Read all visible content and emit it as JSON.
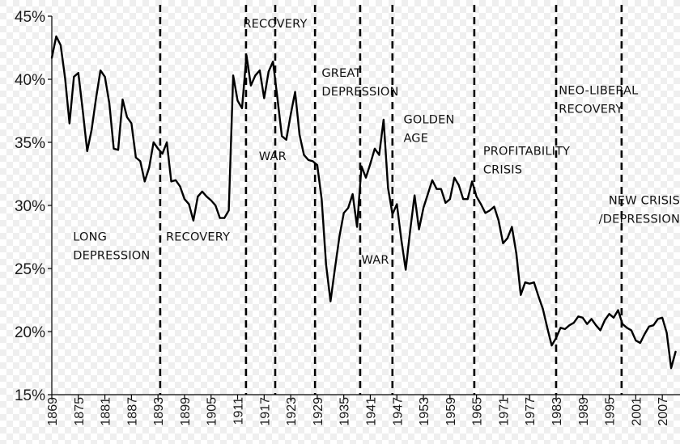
{
  "chart_data": {
    "type": "line",
    "title": "",
    "xlabel": "",
    "ylabel": "",
    "xlim": [
      1869,
      2011
    ],
    "ylim": [
      15,
      45
    ],
    "grid": false,
    "legend": "none",
    "line_color": "#000000",
    "y_ticks": [
      {
        "value": 15,
        "label": "15%"
      },
      {
        "value": 20,
        "label": "20%"
      },
      {
        "value": 25,
        "label": "25%"
      },
      {
        "value": 30,
        "label": "30%"
      },
      {
        "value": 35,
        "label": "35%"
      },
      {
        "value": 40,
        "label": "40%"
      },
      {
        "value": 45,
        "label": "45%"
      }
    ],
    "x_ticks": [
      {
        "value": 1869,
        "label": "1869"
      },
      {
        "value": 1875,
        "label": "1875"
      },
      {
        "value": 1881,
        "label": "1881"
      },
      {
        "value": 1887,
        "label": "1887"
      },
      {
        "value": 1893,
        "label": "1893"
      },
      {
        "value": 1899,
        "label": "1899"
      },
      {
        "value": 1905,
        "label": "1905"
      },
      {
        "value": 1911,
        "label": "1911"
      },
      {
        "value": 1917,
        "label": "1917"
      },
      {
        "value": 1923,
        "label": "1923"
      },
      {
        "value": 1929,
        "label": "1929"
      },
      {
        "value": 1935,
        "label": "1935"
      },
      {
        "value": 1941,
        "label": "1941"
      },
      {
        "value": 1947,
        "label": "1947"
      },
      {
        "value": 1953,
        "label": "1953"
      },
      {
        "value": 1959,
        "label": "1959"
      },
      {
        "value": 1965,
        "label": "1965"
      },
      {
        "value": 1971,
        "label": "1971"
      },
      {
        "value": 1977,
        "label": "1977"
      },
      {
        "value": 1983,
        "label": "1983"
      },
      {
        "value": 1989,
        "label": "1989"
      },
      {
        "value": 1995,
        "label": "1995"
      },
      {
        "value": 2001,
        "label": "2001"
      },
      {
        "value": 2007,
        "label": "2007"
      }
    ],
    "x": [
      1869,
      1870,
      1871,
      1872,
      1873,
      1874,
      1875,
      1876,
      1877,
      1878,
      1879,
      1880,
      1881,
      1882,
      1883,
      1884,
      1885,
      1886,
      1887,
      1888,
      1889,
      1890,
      1891,
      1892,
      1893,
      1894,
      1895,
      1896,
      1897,
      1898,
      1899,
      1900,
      1901,
      1902,
      1903,
      1904,
      1905,
      1906,
      1907,
      1908,
      1909,
      1910,
      1911,
      1912,
      1913,
      1914,
      1915,
      1916,
      1917,
      1918,
      1919,
      1920,
      1921,
      1922,
      1923,
      1924,
      1925,
      1926,
      1927,
      1928,
      1929,
      1930,
      1931,
      1932,
      1933,
      1934,
      1935,
      1936,
      1937,
      1938,
      1939,
      1940,
      1941,
      1942,
      1943,
      1944,
      1945,
      1946,
      1947,
      1948,
      1949,
      1950,
      1951,
      1952,
      1953,
      1954,
      1955,
      1956,
      1957,
      1958,
      1959,
      1960,
      1961,
      1962,
      1963,
      1964,
      1965,
      1966,
      1967,
      1968,
      1969,
      1970,
      1971,
      1972,
      1973,
      1974,
      1975,
      1976,
      1977,
      1978,
      1979,
      1980,
      1981,
      1982,
      1983,
      1984,
      1985,
      1986,
      1987,
      1988,
      1989,
      1990,
      1991,
      1992,
      1993,
      1994,
      1995,
      1996,
      1997,
      1998,
      1999,
      2000,
      2001,
      2002,
      2003,
      2004,
      2005,
      2006,
      2007,
      2008,
      2009,
      2010
    ],
    "values": [
      41.7,
      43.4,
      42.7,
      40.1,
      36.5,
      40.2,
      40.5,
      37.5,
      34.3,
      36.0,
      38.5,
      40.7,
      40.2,
      38.1,
      34.5,
      34.4,
      38.4,
      37.0,
      36.5,
      33.8,
      33.5,
      31.9,
      33.0,
      35.0,
      34.5,
      34.1,
      35.0,
      31.9,
      32.0,
      31.5,
      30.5,
      30.1,
      28.8,
      30.7,
      31.1,
      30.7,
      30.4,
      30.0,
      29.0,
      29.0,
      29.6,
      40.3,
      38.3,
      37.7,
      41.9,
      39.5,
      40.3,
      40.7,
      38.5,
      40.6,
      41.4,
      38.5,
      35.5,
      35.2,
      37.2,
      39.0,
      35.6,
      34.0,
      33.6,
      33.5,
      33.2,
      30.5,
      25.3,
      22.4,
      25.0,
      27.5,
      29.4,
      29.8,
      30.9,
      28.3,
      33.1,
      32.2,
      33.3,
      34.5,
      34.0,
      36.8,
      31.4,
      29.3,
      30.1,
      27.3,
      24.9,
      28.0,
      30.8,
      28.1,
      29.8,
      30.9,
      32.0,
      31.3,
      31.3,
      30.2,
      30.5,
      32.2,
      31.6,
      30.5,
      30.5,
      31.9,
      30.7,
      30.1,
      29.4,
      29.6,
      29.9,
      28.8,
      27.0,
      27.4,
      28.3,
      26.2,
      22.9,
      23.9,
      23.8,
      23.9,
      22.8,
      21.8,
      20.3,
      18.9,
      19.5,
      20.3,
      20.2,
      20.5,
      20.7,
      21.2,
      21.1,
      20.6,
      21.0,
      20.5,
      20.1,
      20.9,
      21.4,
      21.1,
      21.7,
      20.6,
      20.3,
      20.1,
      19.3,
      19.1,
      19.8,
      20.4,
      20.5,
      21.0,
      21.1,
      19.9,
      17.1,
      18.4
    ],
    "dividers": [
      1893.5,
      1912.9,
      1919.5,
      1928.5,
      1938.7,
      1946.0,
      1964.5,
      1983.0,
      1997.8
    ],
    "annotations": [
      {
        "lines": [
          "LONG",
          "DEPRESSION"
        ],
        "x": 1873.8,
        "y": 27.2,
        "anchor": "start"
      },
      {
        "lines": [
          "RECOVERY"
        ],
        "x": 1894.8,
        "y": 27.2,
        "anchor": "start"
      },
      {
        "lines": [
          "RECOVERY"
        ],
        "x": 1919.5,
        "y": 44.1,
        "anchor": "middle"
      },
      {
        "lines": [
          "WAR"
        ],
        "x": 1915.8,
        "y": 33.6,
        "anchor": "start"
      },
      {
        "lines": [
          "GREAT",
          "DEPRESSION"
        ],
        "x": 1930.0,
        "y": 40.2,
        "anchor": "start"
      },
      {
        "lines": [
          "WAR"
        ],
        "x": 1939.0,
        "y": 25.4,
        "anchor": "start"
      },
      {
        "lines": [
          "GOLDEN",
          "AGE"
        ],
        "x": 1948.5,
        "y": 36.5,
        "anchor": "start"
      },
      {
        "lines": [
          "PROFITABILITY",
          "CRISIS"
        ],
        "x": 1966.5,
        "y": 34.0,
        "anchor": "start"
      },
      {
        "lines": [
          "NEO-LIBERAL",
          "RECOVERY"
        ],
        "x": 1983.6,
        "y": 38.8,
        "anchor": "start"
      },
      {
        "lines": [
          "NEW CRISIS",
          "/DEPRESSION"
        ],
        "x": 2011,
        "y": 30.1,
        "anchor": "end"
      }
    ]
  }
}
